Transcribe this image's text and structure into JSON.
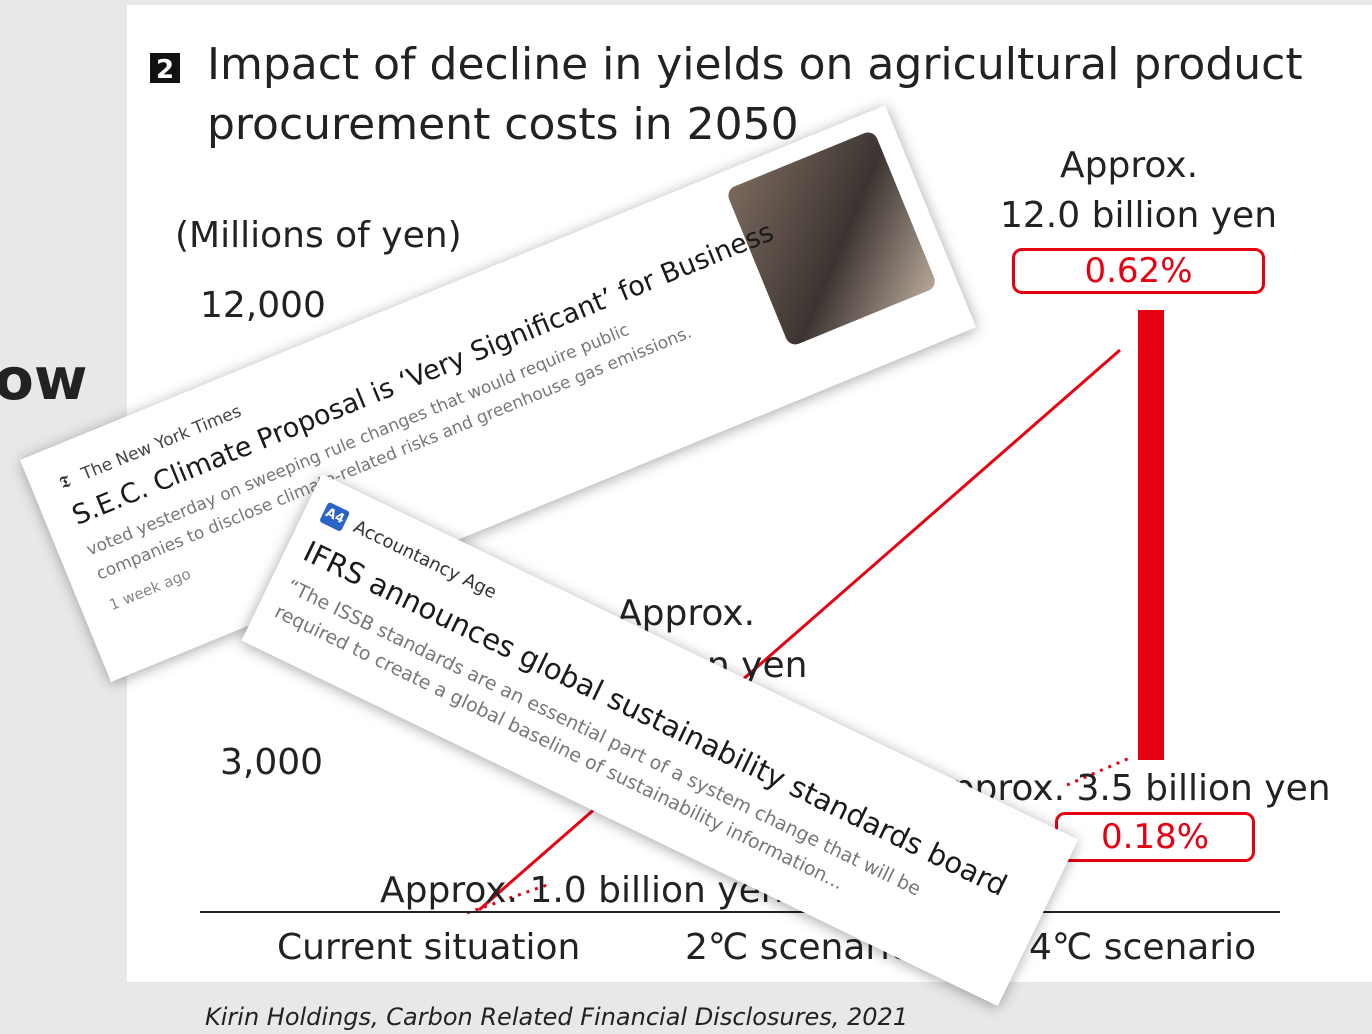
{
  "slide": {
    "partial_heading": "ow",
    "caption": "Kirin Holdings, Carbon Related Financial Disclosures, 2021"
  },
  "figure": {
    "number": "2",
    "title_line1": "Impact of decline in yields on agricultural product",
    "title_line2": "procurement costs in 2050",
    "unit": "(Millions of yen)",
    "axis_labels": [
      "12,000",
      "3,000"
    ],
    "annotations": {
      "four": {
        "line1": "Approx.",
        "line2": "12.0 billion yen",
        "percent": "0.62%"
      },
      "two": {
        "line1": "Approx.",
        "line2": "billion yen",
        "line3": "Approx. 3.5 billion yen",
        "percent": "0.18%"
      },
      "current": "Approx. 1.0 billion yen"
    },
    "categories": [
      "Current situation",
      "2℃ scenario",
      "4℃ scenario"
    ]
  },
  "cards": [
    {
      "source": "The New York Times",
      "headline": "S.E.C. Climate Proposal is ‘Very Significant’ for Business",
      "snippet_line1": "voted yesterday on sweeping rule changes that would require public",
      "snippet_line2": "companies to disclose climate-related risks and greenhouse gas emissions.",
      "time": "1 week ago"
    },
    {
      "icon": "A4",
      "source": "Accountancy Age",
      "headline": "IFRS announces global sustainability standards board",
      "quote_line1": "“The ISSB standards are an essential part of a system change that will be",
      "quote_line2": "required to create a global baseline of sustainability information..."
    }
  ]
}
